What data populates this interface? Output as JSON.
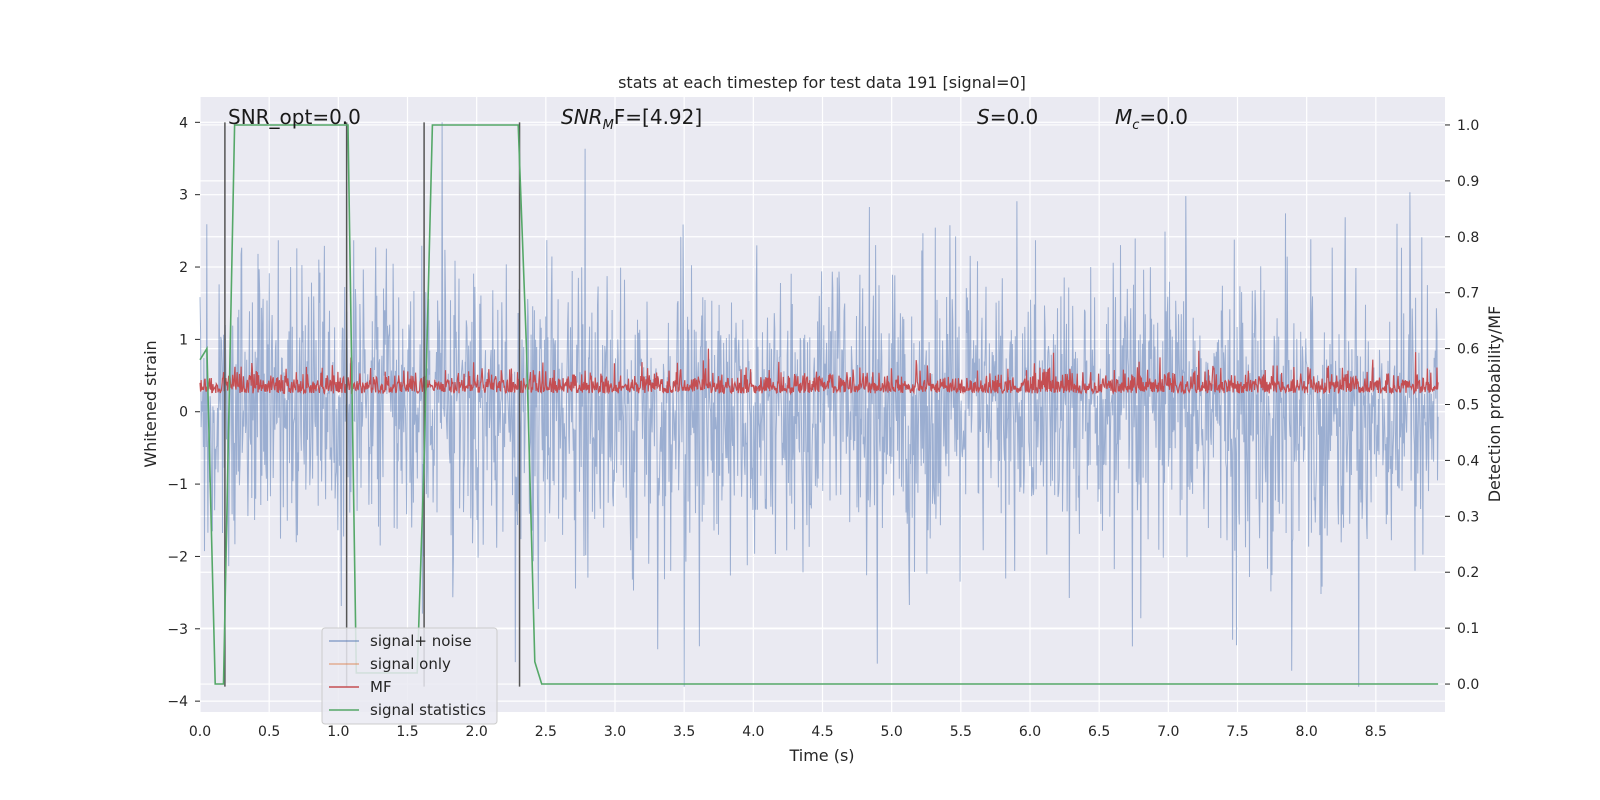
{
  "chart_data": {
    "type": "line",
    "title": "stats at each timestep for test data 191 [signal=0]",
    "xlabel": "Time (s)",
    "ylabel_left": "Whitened strain",
    "ylabel_right": "Detection probability/MF",
    "xlim": [
      0.0,
      9.0
    ],
    "ylim_left": [
      -4.15,
      4.35
    ],
    "ylim_right": [
      -0.05,
      1.05
    ],
    "x_ticks": [
      "0.0",
      "0.5",
      "1.0",
      "1.5",
      "2.0",
      "2.5",
      "3.0",
      "3.5",
      "4.0",
      "4.5",
      "5.0",
      "5.5",
      "6.0",
      "6.5",
      "7.0",
      "7.5",
      "8.0",
      "8.5"
    ],
    "y_ticks_left": [
      "4",
      "3",
      "2",
      "1",
      "0",
      "−1",
      "−2",
      "−3",
      "−4"
    ],
    "y_ticks_right": [
      "1.0",
      "0.9",
      "0.8",
      "0.7",
      "0.6",
      "0.5",
      "0.4",
      "0.3",
      "0.2",
      "0.1",
      "0.0"
    ],
    "annotations": {
      "snr_opt": "SNR_opt=0.0",
      "snr_mf_main": "SNR",
      "snr_mf_sub": "M",
      "snr_mf_rest": "F=[4.92]",
      "s_label": "S",
      "s_value": "=0.0",
      "mc_label": "M",
      "mc_sub": "c",
      "mc_value": "=0.0"
    },
    "grid": true,
    "legend_position": "lower-left",
    "series": [
      {
        "name": "signal+ noise",
        "axis": "left",
        "color": "#4c72b0",
        "description_of_values": "noisy whitened strain, ~±1.8 typical, peaks to ±4"
      },
      {
        "name": "signal only",
        "axis": "left",
        "color": "#dd8452",
        "values": []
      },
      {
        "name": "MF",
        "axis": "right",
        "color": "#c44e52"
      },
      {
        "name": "signal statistics",
        "axis": "right",
        "color": "#55a868",
        "x": [
          0.0,
          0.05,
          0.11,
          0.17,
          0.25,
          1.0,
          1.07,
          1.13,
          1.57,
          1.62,
          1.68,
          2.3,
          2.36,
          2.42,
          2.47,
          8.95
        ],
        "y": [
          0.58,
          0.6,
          0.0,
          0.0,
          1.0,
          1.0,
          1.0,
          0.02,
          0.02,
          0.4,
          1.0,
          1.0,
          0.6,
          0.04,
          0.0,
          0.0
        ]
      }
    ],
    "vertical_lines": [
      0.18,
      1.06,
      1.62,
      2.31
    ],
    "vlines_color": "#555555"
  },
  "legend": {
    "items": [
      {
        "label": "signal+ noise",
        "color": "#4c72b0"
      },
      {
        "label": "signal only",
        "color": "#dd8452"
      },
      {
        "label": "MF",
        "color": "#c44e52"
      },
      {
        "label": "signal statistics",
        "color": "#55a868"
      }
    ]
  },
  "colors": {
    "axes_bg": "#eaeaf2",
    "grid": "#ffffff",
    "text": "#262626"
  }
}
